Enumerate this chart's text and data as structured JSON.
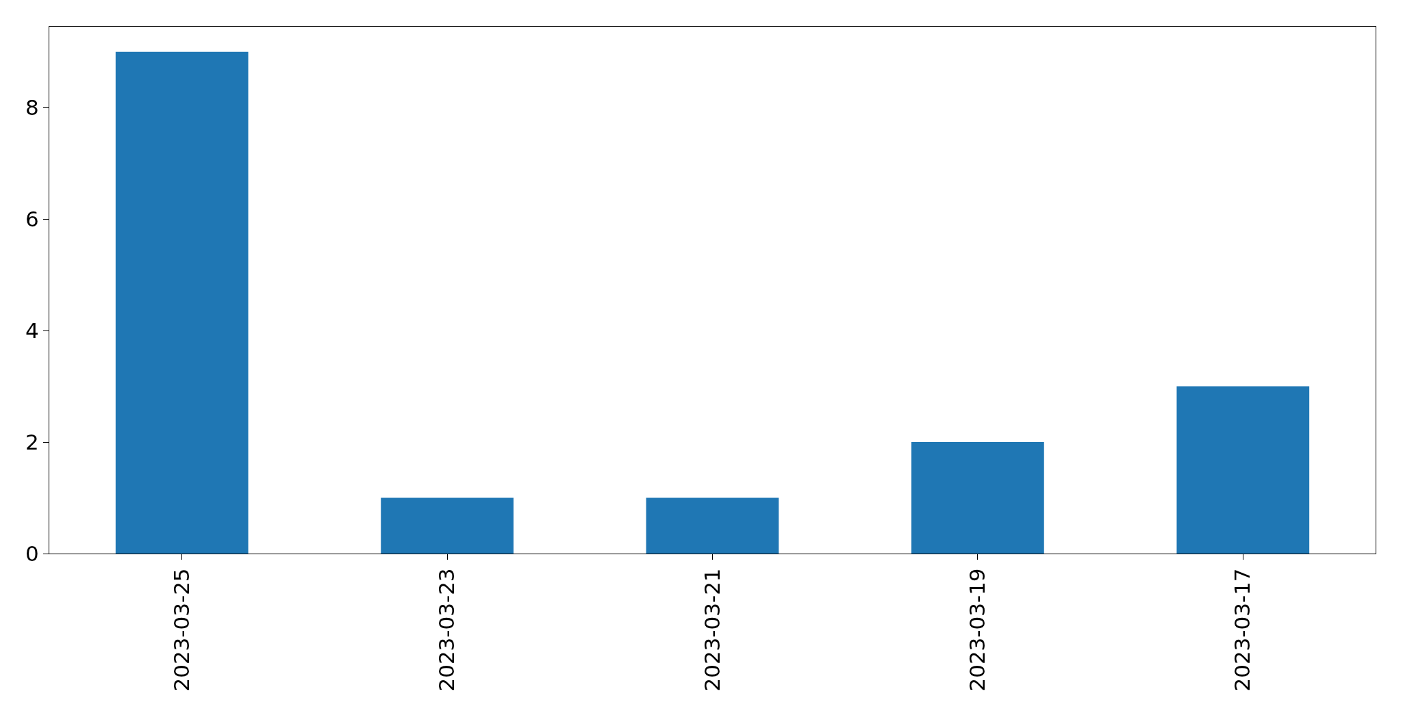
{
  "chart_data": {
    "type": "bar",
    "categories": [
      "2023-03-25",
      "2023-03-23",
      "2023-03-21",
      "2023-03-19",
      "2023-03-17"
    ],
    "values": [
      9,
      1,
      1,
      2,
      3
    ],
    "color": "#1f77b4",
    "ylim": [
      0,
      9.45
    ],
    "yticks": [
      0,
      2,
      4,
      6,
      8
    ]
  }
}
